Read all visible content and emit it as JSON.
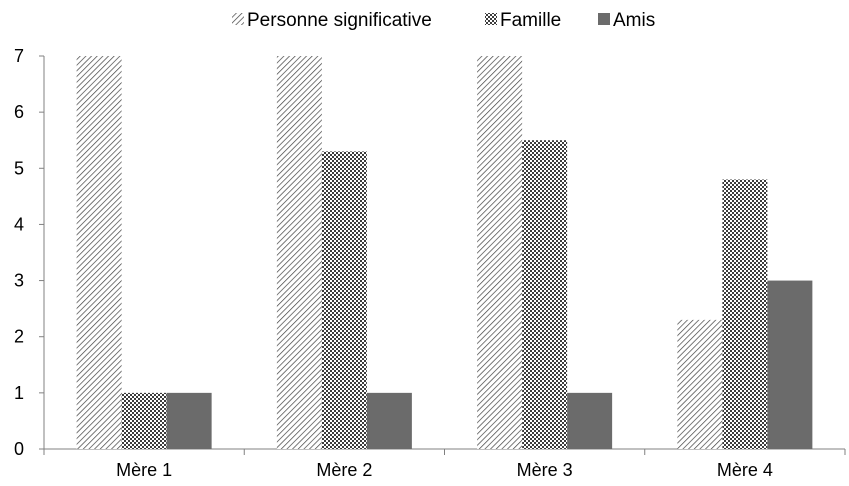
{
  "chart_data": {
    "type": "bar",
    "categories": [
      "Mère 1",
      "Mère 2",
      "Mère 3",
      "Mère 4"
    ],
    "series": [
      {
        "name": "Personne significative",
        "values": [
          7,
          7,
          7,
          2.3
        ],
        "pattern": "diagonal-hatch"
      },
      {
        "name": "Famille",
        "values": [
          1,
          5.3,
          5.5,
          4.8
        ],
        "pattern": "crosshatch"
      },
      {
        "name": "Amis",
        "values": [
          1,
          1,
          1,
          3
        ],
        "pattern": "solid"
      }
    ],
    "ylim": [
      0,
      7
    ],
    "yticks": [
      0,
      1,
      2,
      3,
      4,
      5,
      6,
      7
    ],
    "grid": false,
    "legend_position": "top-center",
    "colors": {
      "dark_bar": "#6b6b6b",
      "hatch_ink": "#404040",
      "axis": "#808080"
    }
  }
}
